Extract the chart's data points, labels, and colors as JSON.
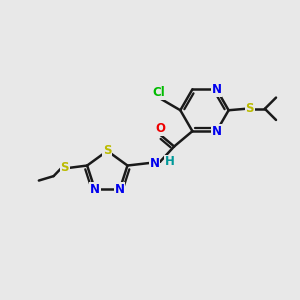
{
  "bg_color": "#e8e8e8",
  "bond_color": "#1a1a1a",
  "bond_width": 1.8,
  "atom_colors": {
    "C": "#000000",
    "N": "#0000ee",
    "O": "#ee0000",
    "S": "#bbbb00",
    "Cl": "#00bb00",
    "H": "#009999"
  },
  "font_size": 8.5
}
